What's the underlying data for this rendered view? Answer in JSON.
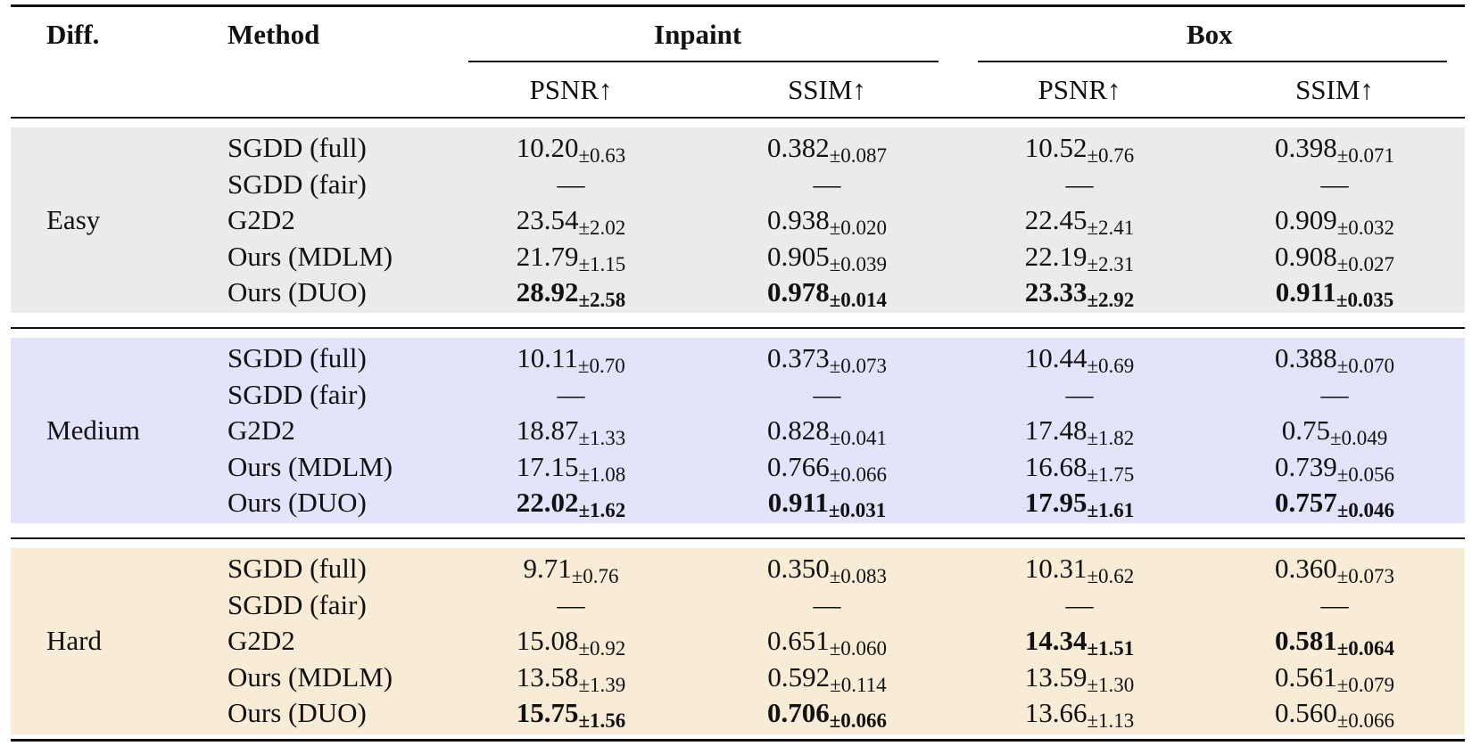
{
  "header": {
    "diff_label": "Diff.",
    "method_label": "Method",
    "group_inpaint": "Inpaint",
    "group_box": "Box",
    "metrics": [
      "PSNR↑",
      "SSIM↑",
      "PSNR↑",
      "SSIM↑"
    ]
  },
  "colors": {
    "easy": "#ebebeb",
    "medium": "#e3e3fb",
    "hard": "#f9ecd7"
  },
  "groups": [
    {
      "name": "Easy",
      "rows": [
        {
          "method": "SGDD (full)",
          "cells": [
            {
              "v": "10.20",
              "pm": "±0.63",
              "best": false
            },
            {
              "v": "0.382",
              "pm": "±0.087",
              "best": false
            },
            {
              "v": "10.52",
              "pm": "±0.76",
              "best": false
            },
            {
              "v": "0.398",
              "pm": "±0.071",
              "best": false
            }
          ]
        },
        {
          "method": "SGDD (fair)",
          "cells": [
            {
              "v": "—",
              "pm": "",
              "best": false
            },
            {
              "v": "—",
              "pm": "",
              "best": false
            },
            {
              "v": "—",
              "pm": "",
              "best": false
            },
            {
              "v": "—",
              "pm": "",
              "best": false
            }
          ]
        },
        {
          "method": "G2D2",
          "cells": [
            {
              "v": "23.54",
              "pm": "±2.02",
              "best": false
            },
            {
              "v": "0.938",
              "pm": "±0.020",
              "best": false
            },
            {
              "v": "22.45",
              "pm": "±2.41",
              "best": false
            },
            {
              "v": "0.909",
              "pm": "±0.032",
              "best": false
            }
          ]
        },
        {
          "method": "Ours (MDLM)",
          "cells": [
            {
              "v": "21.79",
              "pm": "±1.15",
              "best": false
            },
            {
              "v": "0.905",
              "pm": "±0.039",
              "best": false
            },
            {
              "v": "22.19",
              "pm": "±2.31",
              "best": false
            },
            {
              "v": "0.908",
              "pm": "±0.027",
              "best": false
            }
          ]
        },
        {
          "method": "Ours (DUO)",
          "cells": [
            {
              "v": "28.92",
              "pm": "±2.58",
              "best": true
            },
            {
              "v": "0.978",
              "pm": "±0.014",
              "best": true
            },
            {
              "v": "23.33",
              "pm": "±2.92",
              "best": true
            },
            {
              "v": "0.911",
              "pm": "±0.035",
              "best": true
            }
          ]
        }
      ]
    },
    {
      "name": "Medium",
      "rows": [
        {
          "method": "SGDD (full)",
          "cells": [
            {
              "v": "10.11",
              "pm": "±0.70",
              "best": false
            },
            {
              "v": "0.373",
              "pm": "±0.073",
              "best": false
            },
            {
              "v": "10.44",
              "pm": "±0.69",
              "best": false
            },
            {
              "v": "0.388",
              "pm": "±0.070",
              "best": false
            }
          ]
        },
        {
          "method": "SGDD (fair)",
          "cells": [
            {
              "v": "—",
              "pm": "",
              "best": false
            },
            {
              "v": "—",
              "pm": "",
              "best": false
            },
            {
              "v": "—",
              "pm": "",
              "best": false
            },
            {
              "v": "—",
              "pm": "",
              "best": false
            }
          ]
        },
        {
          "method": "G2D2",
          "cells": [
            {
              "v": "18.87",
              "pm": "±1.33",
              "best": false
            },
            {
              "v": "0.828",
              "pm": "±0.041",
              "best": false
            },
            {
              "v": "17.48",
              "pm": "±1.82",
              "best": false
            },
            {
              "v": "0.75",
              "pm": "±0.049",
              "best": false
            }
          ]
        },
        {
          "method": "Ours (MDLM)",
          "cells": [
            {
              "v": "17.15",
              "pm": "±1.08",
              "best": false
            },
            {
              "v": "0.766",
              "pm": "±0.066",
              "best": false
            },
            {
              "v": "16.68",
              "pm": "±1.75",
              "best": false
            },
            {
              "v": "0.739",
              "pm": "±0.056",
              "best": false
            }
          ]
        },
        {
          "method": "Ours (DUO)",
          "cells": [
            {
              "v": "22.02",
              "pm": "±1.62",
              "best": true
            },
            {
              "v": "0.911",
              "pm": "±0.031",
              "best": true
            },
            {
              "v": "17.95",
              "pm": "±1.61",
              "best": true
            },
            {
              "v": "0.757",
              "pm": "±0.046",
              "best": true
            }
          ]
        }
      ]
    },
    {
      "name": "Hard",
      "rows": [
        {
          "method": "SGDD (full)",
          "cells": [
            {
              "v": "9.71",
              "pm": "±0.76",
              "best": false
            },
            {
              "v": "0.350",
              "pm": "±0.083",
              "best": false
            },
            {
              "v": "10.31",
              "pm": "±0.62",
              "best": false
            },
            {
              "v": "0.360",
              "pm": "±0.073",
              "best": false
            }
          ]
        },
        {
          "method": "SGDD (fair)",
          "cells": [
            {
              "v": "—",
              "pm": "",
              "best": false
            },
            {
              "v": "—",
              "pm": "",
              "best": false
            },
            {
              "v": "—",
              "pm": "",
              "best": false
            },
            {
              "v": "—",
              "pm": "",
              "best": false
            }
          ]
        },
        {
          "method": "G2D2",
          "cells": [
            {
              "v": "15.08",
              "pm": "±0.92",
              "best": false
            },
            {
              "v": "0.651",
              "pm": "±0.060",
              "best": false
            },
            {
              "v": "14.34",
              "pm": "±1.51",
              "best": true
            },
            {
              "v": "0.581",
              "pm": "±0.064",
              "best": true
            }
          ]
        },
        {
          "method": "Ours (MDLM)",
          "cells": [
            {
              "v": "13.58",
              "pm": "±1.39",
              "best": false
            },
            {
              "v": "0.592",
              "pm": "±0.114",
              "best": false
            },
            {
              "v": "13.59",
              "pm": "±1.30",
              "best": false
            },
            {
              "v": "0.561",
              "pm": "±0.079",
              "best": false
            }
          ]
        },
        {
          "method": "Ours (DUO)",
          "cells": [
            {
              "v": "15.75",
              "pm": "±1.56",
              "best": true
            },
            {
              "v": "0.706",
              "pm": "±0.066",
              "best": true
            },
            {
              "v": "13.66",
              "pm": "±1.13",
              "best": false
            },
            {
              "v": "0.560",
              "pm": "±0.066",
              "best": false
            }
          ]
        }
      ]
    }
  ]
}
